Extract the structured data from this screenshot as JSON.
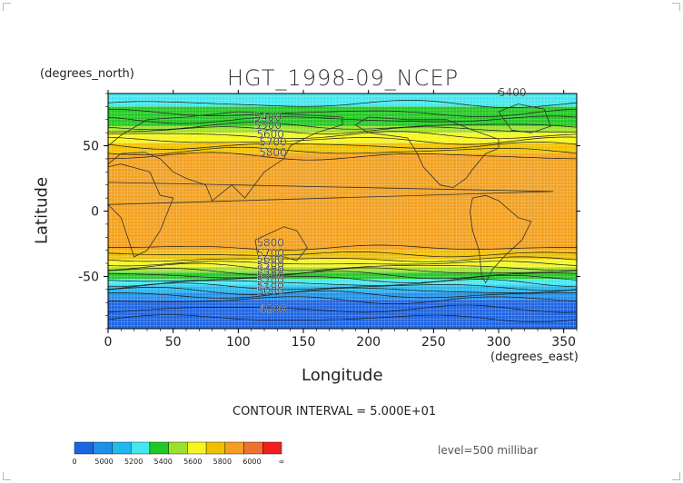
{
  "chart_data": {
    "type": "heatmap",
    "title": "HGT_1998-09_NCEP",
    "xlabel": "Longitude",
    "ylabel": "Latitude",
    "x_units_label": "(degrees_east)",
    "y_units_label": "(degrees_north)",
    "xlim": [
      0,
      360
    ],
    "ylim": [
      -90,
      90
    ],
    "x_ticks": [
      "0",
      "50",
      "100",
      "150",
      "200",
      "250",
      "300",
      "350"
    ],
    "x_tick_values": [
      0,
      50,
      100,
      150,
      200,
      250,
      300,
      350
    ],
    "y_ticks": [
      "50",
      "0",
      "-50"
    ],
    "y_tick_values": [
      50,
      0,
      -50
    ],
    "grid": true,
    "contour_interval_text": "CONTOUR INTERVAL = 5.000E+01",
    "level_text": "level=500 millibar",
    "colorbar": {
      "labels": [
        "0",
        "5000",
        "5200",
        "5400",
        "5600",
        "5800",
        "6000",
        "∞"
      ],
      "colors": [
        "#1e64e0",
        "#1f90e8",
        "#22b8ee",
        "#40e8f0",
        "#22c822",
        "#9de02c",
        "#f5f520",
        "#f0c000",
        "#f2a01e",
        "#f07030",
        "#f02020"
      ]
    },
    "bands": [
      {
        "lat_from": 90,
        "lat_to": 80,
        "value": 5450,
        "color": "#40e8f0"
      },
      {
        "lat_from": 80,
        "lat_to": 65,
        "value": 5500,
        "color": "#22c822"
      },
      {
        "lat_from": 65,
        "lat_to": 60,
        "value": 5650,
        "color": "#9de02c"
      },
      {
        "lat_from": 60,
        "lat_to": 52,
        "value": 5750,
        "color": "#f5f520"
      },
      {
        "lat_from": 52,
        "lat_to": 44,
        "value": 5830,
        "color": "#f0c000"
      },
      {
        "lat_from": 44,
        "lat_to": -30,
        "value": 5880,
        "color": "#f2a01e"
      },
      {
        "lat_from": -30,
        "lat_to": -37,
        "value": 5800,
        "color": "#f0c000"
      },
      {
        "lat_from": -37,
        "lat_to": -43,
        "value": 5720,
        "color": "#f5f520"
      },
      {
        "lat_from": -43,
        "lat_to": -47,
        "value": 5640,
        "color": "#9de02c"
      },
      {
        "lat_from": -47,
        "lat_to": -52,
        "value": 5560,
        "color": "#22c822"
      },
      {
        "lat_from": -52,
        "lat_to": -57,
        "value": 5420,
        "color": "#40e8f0"
      },
      {
        "lat_from": -57,
        "lat_to": -62,
        "value": 5300,
        "color": "#22b8ee"
      },
      {
        "lat_from": -62,
        "lat_to": -68,
        "value": 5150,
        "color": "#1f90e8"
      },
      {
        "lat_from": -68,
        "lat_to": -90,
        "value": 4950,
        "color": "#1e64e0"
      }
    ],
    "contour_lines_lat": [
      82,
      75,
      70,
      65,
      62,
      58,
      54,
      50,
      46,
      42,
      -28,
      -33,
      -37,
      -40,
      -43,
      -46,
      -49,
      -52,
      -55,
      -58,
      -61,
      -64,
      -68,
      -75,
      -82
    ],
    "contour_labels": [
      {
        "text": "5400",
        "lon": 300,
        "lat": 88
      },
      {
        "text": "5400",
        "lon": 112,
        "lat": 69
      },
      {
        "text": "5500",
        "lon": 112,
        "lat": 63
      },
      {
        "text": "5600",
        "lon": 114,
        "lat": 56
      },
      {
        "text": "5700",
        "lon": 116,
        "lat": 50
      },
      {
        "text": "5800",
        "lon": 116,
        "lat": 42
      },
      {
        "text": "5800",
        "lon": 114,
        "lat": -27
      },
      {
        "text": "5700",
        "lon": 114,
        "lat": -35
      },
      {
        "text": "5600",
        "lon": 114,
        "lat": -40
      },
      {
        "text": "5500",
        "lon": 114,
        "lat": -44
      },
      {
        "text": "5400",
        "lon": 114,
        "lat": -48
      },
      {
        "text": "5300",
        "lon": 114,
        "lat": -52
      },
      {
        "text": "5200",
        "lon": 114,
        "lat": -56
      },
      {
        "text": "5100",
        "lon": 114,
        "lat": -60
      },
      {
        "text": "5000",
        "lon": 114,
        "lat": -64
      },
      {
        "text": "4900",
        "lon": 116,
        "lat": -78
      }
    ]
  }
}
